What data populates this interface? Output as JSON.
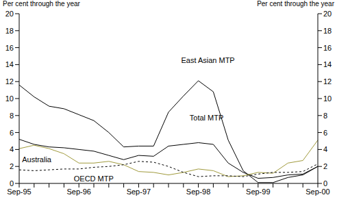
{
  "chart_data": {
    "type": "line",
    "ylabel": "Per cent through the year",
    "y2label": "Per cent through the year",
    "categories": [
      "Sep-95",
      null,
      null,
      null,
      "Sep-96",
      null,
      null,
      null,
      "Sep-97",
      null,
      null,
      null,
      "Sep-98",
      null,
      null,
      null,
      "Sep-99",
      null,
      null,
      null,
      "Sep-00"
    ],
    "ylim": [
      0,
      20
    ],
    "yticks": [
      0,
      2,
      4,
      6,
      8,
      10,
      12,
      14,
      16,
      18,
      20
    ],
    "grid": false,
    "series": [
      {
        "name": "East Asian MTP",
        "color": "#000000",
        "line_style": "solid",
        "marker": "none",
        "values": [
          11.6,
          10.2,
          9.1,
          8.8,
          8.1,
          7.4,
          6.0,
          4.3,
          4.4,
          4.4,
          8.4,
          10.3,
          12.1,
          10.8,
          5.1,
          1.5,
          0.1,
          0.1,
          0.7,
          1.0,
          2.0
        ]
      },
      {
        "name": "Total MTP",
        "color": "#000000",
        "line_style": "solid",
        "marker": "none",
        "values": [
          5.2,
          4.6,
          4.3,
          4.2,
          4.0,
          3.8,
          3.3,
          2.8,
          3.3,
          3.2,
          4.4,
          4.6,
          4.8,
          4.6,
          2.4,
          1.3,
          0.6,
          0.7,
          1.0,
          1.1,
          2.0
        ]
      },
      {
        "name": "Australia",
        "color": "#a09a3c",
        "line_style": "solid",
        "marker": "none",
        "values": [
          4.1,
          4.5,
          4.1,
          3.5,
          2.4,
          2.4,
          2.6,
          2.2,
          1.4,
          1.3,
          1.0,
          1.3,
          1.7,
          1.5,
          0.8,
          0.9,
          1.3,
          1.2,
          2.4,
          2.7,
          5.1
        ]
      },
      {
        "name": "OECD MTP",
        "color": "#000000",
        "line_style": "dashed",
        "marker": "none",
        "values": [
          1.6,
          1.5,
          1.6,
          1.7,
          1.7,
          1.9,
          2.0,
          2.2,
          2.6,
          2.5,
          2.0,
          1.3,
          0.8,
          0.9,
          0.9,
          0.8,
          1.1,
          1.3,
          1.3,
          1.4,
          2.3
        ]
      }
    ]
  }
}
